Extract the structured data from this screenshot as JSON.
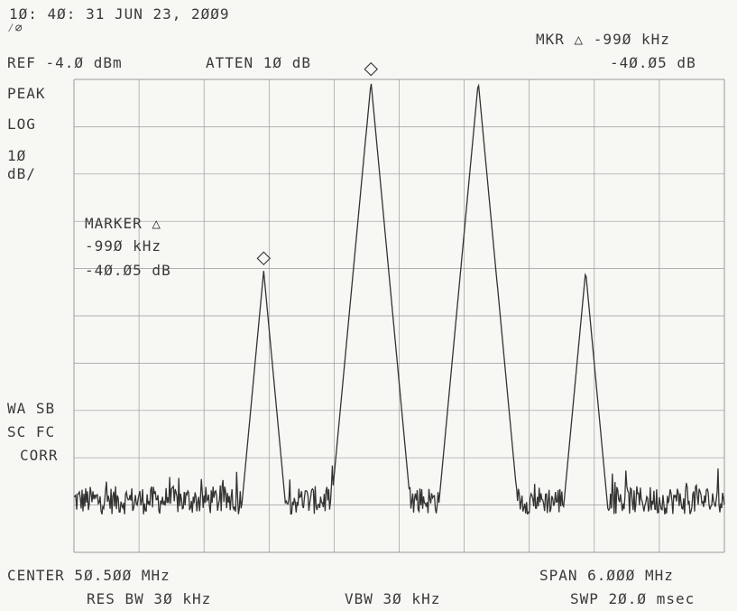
{
  "header": {
    "timestamp": "1Ø: 4Ø: 31 JUN 23, 2ØØ9",
    "ref_level": "REF -4.Ø dBm",
    "attenuation": "ATTEN 1Ø dB",
    "marker_readout_label": "MKR △ -99Ø kHz",
    "marker_readout_value": "-4Ø.Ø5 dB"
  },
  "left_annotations": {
    "detector": "PEAK",
    "scale_mode": "LOG",
    "scale_value": "1Ø",
    "scale_unit": "dB/",
    "status_1": "WA SB",
    "status_2": "SC FC",
    "status_3": "CORR"
  },
  "marker_box": {
    "title": "MARKER △",
    "freq": "-99Ø kHz",
    "level": "-4Ø.Ø5 dB"
  },
  "footer": {
    "center": "CENTER 5Ø.5ØØ MHz",
    "span": "SPAN 6.ØØØ MHz",
    "rbw": "RES BW 3Ø kHz",
    "vbw": "VBW 3Ø kHz",
    "sweep": "SWP 2Ø.Ø msec"
  },
  "colors": {
    "trace": "#333333",
    "grid": "#9a9a9a",
    "background": "#f7f7f4"
  },
  "chart_data": {
    "type": "line",
    "x_units": "MHz",
    "y_units": "dBm",
    "xlim": [
      47.5,
      53.5
    ],
    "ylim": [
      -104,
      -4
    ],
    "x_divisions": 10,
    "y_divisions": 10,
    "grid": true,
    "noise_floor_dbm": -93,
    "peaks": [
      {
        "x": 49.25,
        "y": -44.5,
        "marker": true
      },
      {
        "x": 50.24,
        "y": -4.5,
        "marker": true
      },
      {
        "x": 51.23,
        "y": -4.5,
        "marker": false
      },
      {
        "x": 52.22,
        "y": -44.5,
        "marker": false
      }
    ]
  }
}
